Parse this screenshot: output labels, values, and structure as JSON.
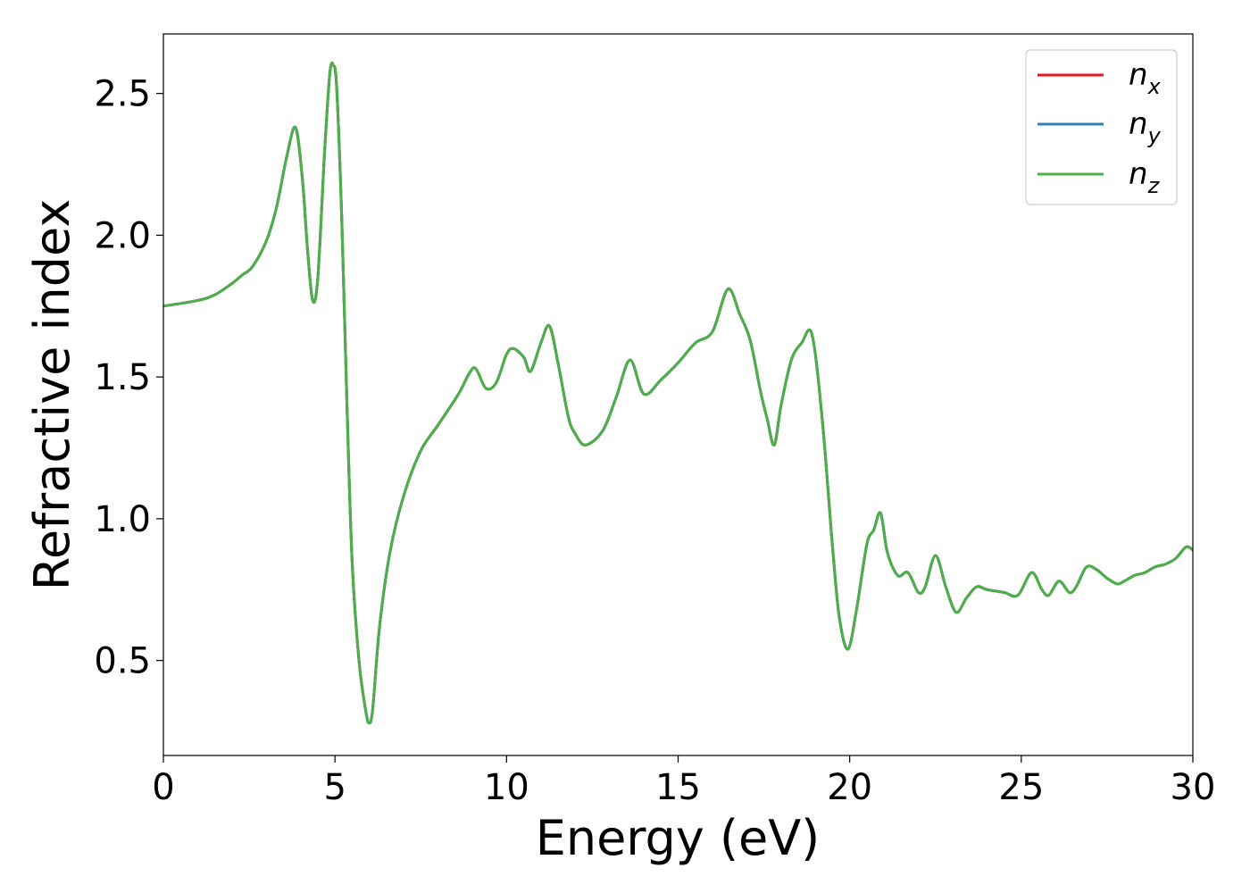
{
  "chart_data": {
    "type": "line",
    "xlabel": "Energy (eV)",
    "ylabel": "Refractive index",
    "xlim": [
      0,
      30
    ],
    "ylim": [
      0.165,
      2.71
    ],
    "xticks": [
      0,
      5,
      10,
      15,
      20,
      25,
      30
    ],
    "xtick_labels": [
      "0",
      "5",
      "10",
      "15",
      "20",
      "25",
      "30"
    ],
    "yticks": [
      0.5,
      1.0,
      1.5,
      2.0,
      2.5
    ],
    "ytick_labels": [
      "0.5",
      "1.0",
      "1.5",
      "2.0",
      "2.5"
    ],
    "grid": false,
    "legend_position": "top-right",
    "series": [
      {
        "name": "n",
        "subscript": "x",
        "color": "#e41a1c"
      },
      {
        "name": "n",
        "subscript": "y",
        "color": "#377eb8"
      },
      {
        "name": "n",
        "subscript": "z",
        "color": "#4daf4a"
      }
    ],
    "x": [
      0,
      1,
      1.5,
      2,
      2.3,
      2.6,
      3.0,
      3.3,
      3.6,
      3.85,
      4.05,
      4.2,
      4.35,
      4.5,
      4.7,
      4.85,
      4.95,
      5.05,
      5.2,
      5.35,
      5.5,
      5.7,
      5.9,
      6.0,
      6.1,
      6.3,
      6.6,
      7.0,
      7.5,
      8.0,
      8.6,
      8.9,
      9.1,
      9.4,
      9.7,
      10.0,
      10.2,
      10.5,
      10.7,
      11.0,
      11.25,
      11.5,
      11.8,
      12.0,
      12.3,
      12.8,
      13.2,
      13.6,
      14.0,
      14.5,
      15.0,
      15.5,
      16.0,
      16.45,
      16.8,
      17.1,
      17.4,
      17.6,
      17.8,
      18.0,
      18.3,
      18.6,
      18.9,
      19.2,
      19.5,
      19.7,
      19.95,
      20.2,
      20.5,
      20.7,
      20.9,
      21.1,
      21.4,
      21.7,
      22.0,
      22.2,
      22.5,
      22.8,
      23.1,
      23.4,
      23.7,
      24.0,
      24.5,
      24.9,
      25.3,
      25.6,
      25.8,
      26.1,
      26.4,
      26.6,
      26.9,
      27.2,
      27.5,
      27.8,
      28.0,
      28.3,
      28.6,
      28.9,
      29.2,
      29.5,
      29.8,
      30.0
    ],
    "values": [
      1.75,
      1.77,
      1.79,
      1.83,
      1.86,
      1.89,
      1.98,
      2.1,
      2.28,
      2.38,
      2.2,
      1.95,
      1.77,
      1.85,
      2.3,
      2.57,
      2.6,
      2.52,
      2.05,
      1.4,
      0.85,
      0.5,
      0.32,
      0.28,
      0.33,
      0.62,
      0.88,
      1.08,
      1.24,
      1.33,
      1.44,
      1.51,
      1.53,
      1.46,
      1.48,
      1.58,
      1.6,
      1.57,
      1.52,
      1.62,
      1.68,
      1.55,
      1.36,
      1.3,
      1.26,
      1.31,
      1.43,
      1.56,
      1.44,
      1.49,
      1.55,
      1.62,
      1.66,
      1.81,
      1.72,
      1.63,
      1.45,
      1.35,
      1.26,
      1.4,
      1.56,
      1.62,
      1.65,
      1.35,
      0.9,
      0.65,
      0.54,
      0.68,
      0.91,
      0.96,
      1.02,
      0.88,
      0.8,
      0.81,
      0.74,
      0.76,
      0.87,
      0.76,
      0.67,
      0.72,
      0.76,
      0.75,
      0.74,
      0.73,
      0.81,
      0.75,
      0.73,
      0.78,
      0.74,
      0.76,
      0.83,
      0.82,
      0.79,
      0.77,
      0.78,
      0.8,
      0.81,
      0.83,
      0.84,
      0.86,
      0.9,
      0.89
    ]
  }
}
